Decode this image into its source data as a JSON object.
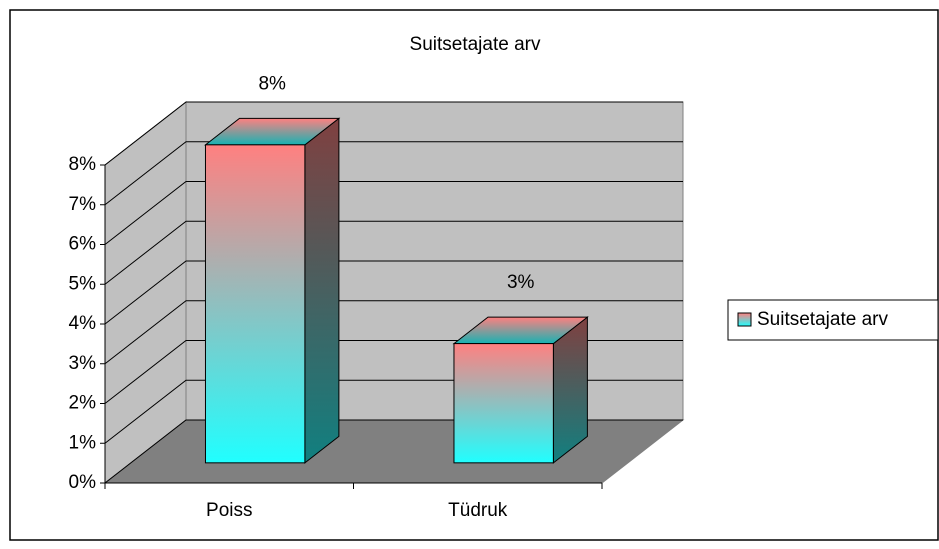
{
  "chart_data": {
    "type": "bar",
    "title": "Suitsetajate arv",
    "categories": [
      "Poiss",
      "Tüdruk"
    ],
    "series": [
      {
        "name": "Suitsetajate arv",
        "color": [
          "#ff8080",
          "#20ffff"
        ],
        "values": [
          8,
          3
        ],
        "value_labels": [
          "8%",
          "3%"
        ]
      }
    ],
    "ylim": [
      0,
      8
    ],
    "yticks": [
      {
        "value": 0,
        "label": "0%"
      },
      {
        "value": 1,
        "label": "1%"
      },
      {
        "value": 2,
        "label": "2%"
      },
      {
        "value": 3,
        "label": "3%"
      },
      {
        "value": 4,
        "label": "4%"
      },
      {
        "value": 5,
        "label": "5%"
      },
      {
        "value": 6,
        "label": "6%"
      },
      {
        "value": 7,
        "label": "7%"
      },
      {
        "value": 8,
        "label": "8%"
      }
    ],
    "grid": true,
    "legend": "right"
  }
}
